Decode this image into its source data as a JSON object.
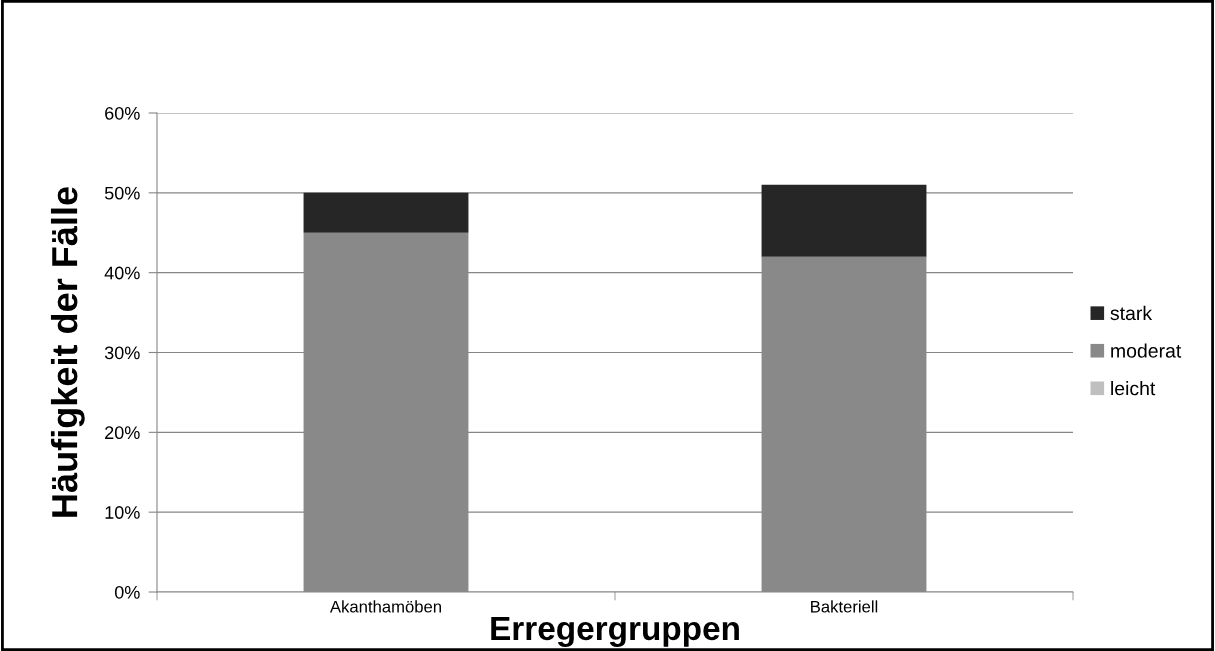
{
  "chart_data": {
    "type": "bar",
    "stacked": true,
    "xlabel": "Erregergruppen",
    "ylabel": "Häufigkeit der Fälle",
    "categories": [
      "Akanthamöben",
      "Bakteriell"
    ],
    "series": [
      {
        "name": "leicht",
        "color": "#bfbfbf",
        "values": [
          0,
          0
        ]
      },
      {
        "name": "moderat",
        "color": "#898989",
        "values": [
          45,
          42
        ]
      },
      {
        "name": "stark",
        "color": "#262626",
        "values": [
          5,
          9
        ]
      }
    ],
    "ylim": [
      0,
      60
    ],
    "yticks": [
      {
        "value": 0,
        "label": "0%"
      },
      {
        "value": 10,
        "label": "10%"
      },
      {
        "value": 20,
        "label": "20%"
      },
      {
        "value": 30,
        "label": "30%"
      },
      {
        "value": 40,
        "label": "40%"
      },
      {
        "value": 50,
        "label": "50%"
      },
      {
        "value": 60,
        "label": "60%"
      }
    ],
    "grid": "y",
    "legend": "right"
  }
}
